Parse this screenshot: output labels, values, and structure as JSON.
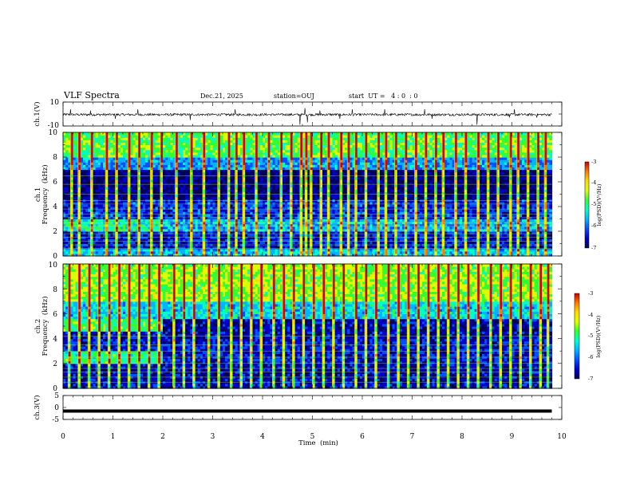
{
  "header": {
    "title": "VLF Spectra",
    "date": "Dec.21, 2025",
    "station": "station=OUJ",
    "start_time": "start  UT =   4 : 0  : 0"
  },
  "colors": {
    "colormap": [
      "#00005a",
      "#0000c8",
      "#0050ff",
      "#00b4ff",
      "#00ffc8",
      "#32ff32",
      "#dcff00",
      "#ffdc00",
      "#ff7800",
      "#c80000"
    ]
  },
  "chart_data": [
    {
      "type": "line",
      "name": "ch1-waveform",
      "ylabel": "ch.1(V)",
      "ylim": [
        -10,
        10
      ],
      "yticks": [
        10,
        -10
      ],
      "baseline": -0.5,
      "noise_amplitude": 1.0,
      "xlim": [
        0,
        10
      ],
      "data_end_min": 9.8,
      "spikes": [
        {
          "x": 0.15,
          "y": 4
        },
        {
          "x": 0.55,
          "y": 3
        },
        {
          "x": 1.05,
          "y": -4
        },
        {
          "x": 1.5,
          "y": 4
        },
        {
          "x": 2.55,
          "y": -5
        },
        {
          "x": 3.45,
          "y": 4
        },
        {
          "x": 4.75,
          "y": -9
        },
        {
          "x": 4.85,
          "y": 5
        },
        {
          "x": 4.9,
          "y": -7
        },
        {
          "x": 5.15,
          "y": 3
        },
        {
          "x": 5.55,
          "y": -4
        },
        {
          "x": 5.8,
          "y": 4
        },
        {
          "x": 6.45,
          "y": 4
        },
        {
          "x": 7.25,
          "y": 4
        },
        {
          "x": 7.4,
          "y": -4
        },
        {
          "x": 8.3,
          "y": -9
        },
        {
          "x": 8.95,
          "y": -3
        },
        {
          "x": 9.05,
          "y": 4
        },
        {
          "x": 9.5,
          "y": -3
        }
      ]
    },
    {
      "type": "heatmap",
      "name": "ch1-spectrogram",
      "ylabel": "ch.1\nFrequency (kHz)",
      "ylabel_line1": "ch.1",
      "ylabel_line2": "Frequency  (kHz)",
      "xlim": [
        0,
        10
      ],
      "ylim": [
        0,
        10
      ],
      "yticks": [
        0,
        2,
        4,
        6,
        8,
        10
      ],
      "data_end_min": 9.8,
      "color_scale": {
        "label": "log(PSD)(V²/Hz)",
        "min": -7,
        "max": -3,
        "ticks": [
          -3,
          -4,
          -5,
          -6,
          -7
        ]
      },
      "bands": [
        {
          "f_from": 0,
          "f_to": 0.5,
          "log_psd": -5.5
        },
        {
          "f_from": 0.5,
          "f_to": 2.0,
          "log_psd": -6.3
        },
        {
          "f_from": 2.0,
          "f_to": 3.0,
          "log_psd": -5.6
        },
        {
          "f_from": 3.0,
          "f_to": 4.5,
          "log_psd": -6.2
        },
        {
          "f_from": 4.5,
          "f_to": 7.0,
          "log_psd": -6.7
        },
        {
          "f_from": 7.0,
          "f_to": 8.0,
          "log_psd": -5.7
        },
        {
          "f_from": 8.0,
          "f_to": 10.0,
          "log_psd": -4.8
        }
      ],
      "patches": [
        {
          "t_from": 0,
          "t_to": 2.0,
          "f_from": 2.0,
          "f_to": 3.0,
          "log_psd": -5.2
        }
      ],
      "harmonic_lines_khz": [
        0.6,
        0.9,
        1.2,
        1.5,
        1.8,
        2.1,
        2.4,
        2.7,
        3.1,
        3.4,
        3.8,
        4.2,
        4.5,
        5.0,
        5.8,
        6.5
      ],
      "sferic_bursts_min": [
        0.15,
        0.3,
        0.55,
        0.85,
        1.05,
        1.3,
        1.5,
        1.75,
        1.95,
        2.25,
        2.55,
        2.8,
        3.1,
        3.3,
        3.45,
        3.6,
        3.85,
        4.1,
        4.35,
        4.55,
        4.75,
        4.85,
        4.95,
        5.15,
        5.3,
        5.55,
        5.7,
        5.85,
        6.05,
        6.3,
        6.45,
        6.65,
        6.85,
        7.05,
        7.25,
        7.45,
        7.6,
        7.85,
        8.05,
        8.3,
        8.5,
        8.7,
        8.95,
        9.1,
        9.3,
        9.5,
        9.65
      ]
    },
    {
      "type": "heatmap",
      "name": "ch2-spectrogram",
      "ylabel": "ch.2\nFrequency (kHz)",
      "ylabel_line1": "ch.2",
      "ylabel_line2": "Frequency  (kHz)",
      "xlim": [
        0,
        10
      ],
      "ylim": [
        0,
        10
      ],
      "yticks": [
        0,
        2,
        4,
        6,
        8,
        10
      ],
      "data_end_min": 9.8,
      "color_scale": {
        "label": "log(PSD)(V²/Hz)",
        "min": -7,
        "max": -3,
        "ticks": [
          -3,
          -4,
          -5,
          -6,
          -7
        ]
      },
      "bands": [
        {
          "f_from": 0,
          "f_to": 0.5,
          "log_psd": -6.4
        },
        {
          "f_from": 0.5,
          "f_to": 2.0,
          "log_psd": -6.5
        },
        {
          "f_from": 2.0,
          "f_to": 4.0,
          "log_psd": -6.3
        },
        {
          "f_from": 4.0,
          "f_to": 5.5,
          "log_psd": -6.5
        },
        {
          "f_from": 5.5,
          "f_to": 7.0,
          "log_psd": -5.4
        },
        {
          "f_from": 7.0,
          "f_to": 10.0,
          "log_psd": -4.6
        }
      ],
      "patches": [
        {
          "t_from": 0,
          "t_to": 2.0,
          "f_from": 2.0,
          "f_to": 3.0,
          "log_psd": -5.0
        },
        {
          "t_from": 0,
          "t_to": 2.0,
          "f_from": 4.5,
          "f_to": 5.5,
          "log_psd": -4.9
        }
      ],
      "harmonic_lines_khz": [
        0.5,
        0.9,
        1.3,
        1.6,
        2.0,
        2.5,
        3.0,
        3.5,
        4.2
      ],
      "sferic_bursts_min": [
        0.1,
        0.3,
        0.5,
        0.7,
        0.9,
        1.1,
        1.3,
        1.5,
        1.7,
        1.9,
        2.2,
        2.4,
        2.6,
        2.9,
        3.1,
        3.35,
        3.55,
        3.75,
        3.95,
        4.2,
        4.4,
        4.6,
        4.8,
        5.0,
        5.2,
        5.4,
        5.6,
        5.85,
        6.05,
        6.25,
        6.5,
        6.7,
        6.9,
        7.1,
        7.3,
        7.5,
        7.7,
        7.9,
        8.1,
        8.3,
        8.55,
        8.75,
        8.95,
        9.15,
        9.35,
        9.55,
        9.7
      ]
    },
    {
      "type": "line",
      "name": "ch3-waveform",
      "ylabel": "ch.3(V)",
      "ylim": [
        -5,
        5
      ],
      "yticks": [
        5,
        0,
        -5
      ],
      "baseline": -1.5,
      "xlim": [
        0,
        10
      ],
      "data_end_min": 9.8
    }
  ],
  "xaxis": {
    "label": "Time  (min)",
    "range": [
      0,
      10
    ],
    "ticks": [
      "0",
      "1",
      "2",
      "3",
      "4",
      "5",
      "6",
      "7",
      "8",
      "9",
      "10"
    ]
  }
}
